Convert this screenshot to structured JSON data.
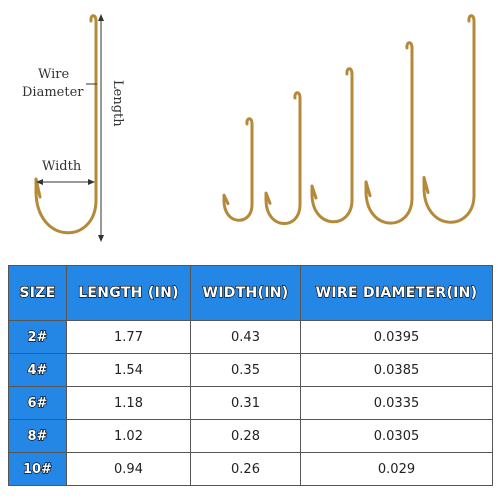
{
  "diagram": {
    "wire_label_1": "Wire",
    "wire_label_2": "Diameter",
    "length_label": "Length",
    "width_label": "Width"
  },
  "table": {
    "header": [
      "SIZE",
      "LENGTH (IN)",
      "WIDTH(IN)",
      "WIRE DIAMETER(IN)"
    ],
    "rows": [
      [
        "2#",
        "1.77",
        "0.43",
        "0.0395"
      ],
      [
        "4#",
        "1.54",
        "0.35",
        "0.0385"
      ],
      [
        "6#",
        "1.18",
        "0.31",
        "0.0335"
      ],
      [
        "8#",
        "1.02",
        "0.28",
        "0.0305"
      ],
      [
        "10#",
        "0.94",
        "0.26",
        "0.029"
      ]
    ]
  }
}
